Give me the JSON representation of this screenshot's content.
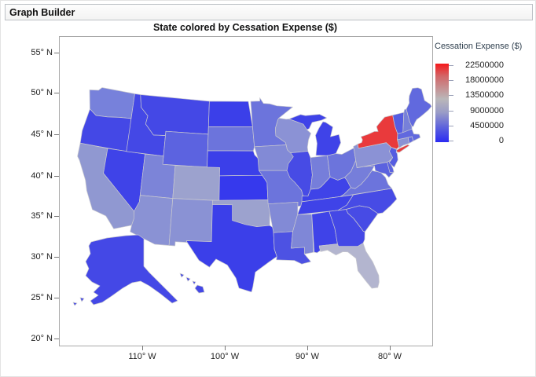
{
  "window": {
    "title": "Graph Builder"
  },
  "chart": {
    "title": "State colored by Cessation Expense ($)",
    "y_axis": {
      "ticks": [
        "55° N",
        "50° N",
        "45° N",
        "40° N",
        "35° N",
        "30° N",
        "25° N",
        "20° N"
      ]
    },
    "x_axis": {
      "ticks": [
        "110° W",
        "100° W",
        "90° W",
        "80° W"
      ]
    },
    "legend": {
      "title": "Cessation Expense ($)",
      "ticks": [
        "22500000",
        "18000000",
        "13500000",
        "9000000",
        "4500000",
        "0"
      ],
      "gradient_top_color": "#f5191b",
      "gradient_mid_color": "#bab7b9",
      "gradient_bottom_color": "#2b2bf2"
    }
  },
  "chart_data": {
    "type": "choropleth",
    "region": "United States (states, with Alaska and Hawaii insets)",
    "color_variable": "Cessation Expense ($)",
    "scale": {
      "min": 0,
      "max": 22500000,
      "colormap": "blue-gray-red continuous"
    },
    "notes": "New York shown in red (maximum); Florida light gray (high); most states blue (low)",
    "states": [
      {
        "id": "WA",
        "name": "Washington",
        "fill": "#7781db"
      },
      {
        "id": "OR",
        "name": "Oregon",
        "fill": "#4448e6"
      },
      {
        "id": "CA",
        "name": "California",
        "fill": "#9098d1"
      },
      {
        "id": "NV",
        "name": "Nevada",
        "fill": "#3f43e8"
      },
      {
        "id": "ID",
        "name": "Idaho",
        "fill": "#4448e6"
      },
      {
        "id": "MT",
        "name": "Montana",
        "fill": "#4448e6"
      },
      {
        "id": "WY",
        "name": "Wyoming",
        "fill": "#5c63e0"
      },
      {
        "id": "UT",
        "name": "Utah",
        "fill": "#7c84d8"
      },
      {
        "id": "CO",
        "name": "Colorado",
        "fill": "#9ca2ce"
      },
      {
        "id": "AZ",
        "name": "Arizona",
        "fill": "#8a92d4"
      },
      {
        "id": "NM",
        "name": "New Mexico",
        "fill": "#8a92d4"
      },
      {
        "id": "ND",
        "name": "North Dakota",
        "fill": "#3b3fe9"
      },
      {
        "id": "SD",
        "name": "South Dakota",
        "fill": "#6c74dc"
      },
      {
        "id": "NE",
        "name": "Nebraska",
        "fill": "#3b3fe9"
      },
      {
        "id": "KS",
        "name": "Kansas",
        "fill": "#3639ed"
      },
      {
        "id": "OK",
        "name": "Oklahoma",
        "fill": "#9ca2ce"
      },
      {
        "id": "TX",
        "name": "Texas",
        "fill": "#3b3fe9"
      },
      {
        "id": "MN",
        "name": "Minnesota",
        "fill": "#6c74dc"
      },
      {
        "id": "IA",
        "name": "Iowa",
        "fill": "#828ad6"
      },
      {
        "id": "MO",
        "name": "Missouri",
        "fill": "#6c74dc"
      },
      {
        "id": "AR",
        "name": "Arkansas",
        "fill": "#828ad6"
      },
      {
        "id": "LA",
        "name": "Louisiana",
        "fill": "#4d52e3"
      },
      {
        "id": "WI",
        "name": "Wisconsin",
        "fill": "#8b92d5"
      },
      {
        "id": "IL",
        "name": "Illinois",
        "fill": "#474be5"
      },
      {
        "id": "MI",
        "name": "Michigan",
        "fill": "#3f43e8"
      },
      {
        "id": "IN",
        "name": "Indiana",
        "fill": "#767eda"
      },
      {
        "id": "OH",
        "name": "Ohio",
        "fill": "#6c74dc"
      },
      {
        "id": "KY",
        "name": "Kentucky",
        "fill": "#3f43e8"
      },
      {
        "id": "TN",
        "name": "Tennessee",
        "fill": "#3f43e8"
      },
      {
        "id": "MS",
        "name": "Mississippi",
        "fill": "#7f87d7"
      },
      {
        "id": "AL",
        "name": "Alabama",
        "fill": "#3f43e8"
      },
      {
        "id": "GA",
        "name": "Georgia",
        "fill": "#4448e6"
      },
      {
        "id": "FL",
        "name": "Florida",
        "fill": "#b3b5cf"
      },
      {
        "id": "SC",
        "name": "South Carolina",
        "fill": "#474be5"
      },
      {
        "id": "NC",
        "name": "North Carolina",
        "fill": "#474be5"
      },
      {
        "id": "VA",
        "name": "Virginia",
        "fill": "#6c74dc"
      },
      {
        "id": "WV",
        "name": "West Virginia",
        "fill": "#767eda"
      },
      {
        "id": "MD",
        "name": "Maryland",
        "fill": "#5b62df"
      },
      {
        "id": "DE",
        "name": "Delaware",
        "fill": "#5b62df"
      },
      {
        "id": "PA",
        "name": "Pennsylvania",
        "fill": "#8b92d5"
      },
      {
        "id": "NJ",
        "name": "New Jersey",
        "fill": "#565de1"
      },
      {
        "id": "NY",
        "name": "New York",
        "fill": "#e93a3c"
      },
      {
        "id": "CT",
        "name": "Connecticut",
        "fill": "#8a92d4"
      },
      {
        "id": "RI",
        "name": "Rhode Island",
        "fill": "#6169de"
      },
      {
        "id": "MA",
        "name": "Massachusetts",
        "fill": "#6169de"
      },
      {
        "id": "VT",
        "name": "Vermont",
        "fill": "#565de1"
      },
      {
        "id": "NH",
        "name": "New Hampshire",
        "fill": "#7780d9"
      },
      {
        "id": "ME",
        "name": "Maine",
        "fill": "#6169de"
      },
      {
        "id": "AK",
        "name": "Alaska",
        "fill": "#4448e6"
      },
      {
        "id": "HI",
        "name": "Hawaii",
        "fill": "#4448e6"
      }
    ]
  }
}
